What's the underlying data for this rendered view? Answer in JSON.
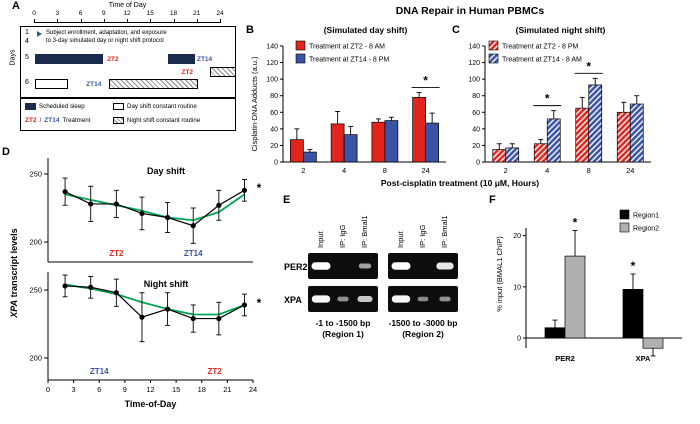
{
  "figure_title": "DNA Repair in Human PBMCs",
  "colors": {
    "red": "#e0251c",
    "blue": "#3a53a4",
    "navy": "#1b2b4d",
    "green": "#00a651",
    "gray": "#b0b0b2",
    "black": "#000000"
  },
  "panelA": {
    "label": "A",
    "axis_title": "Time of Day",
    "ticks": [
      0,
      3,
      6,
      9,
      12,
      15,
      18,
      21,
      24
    ],
    "days_label": "Days",
    "day_first": "1",
    "day_last": "4",
    "enrollment_line1": "Subject enrollment, adaptation, and exposure",
    "enrollment_line2": "to 3-day simulated day or night shift protocol",
    "day5": "5",
    "day6": "6",
    "zt2": "ZT2",
    "zt14": "ZT14",
    "bars": [
      {
        "row": 0,
        "start": 0,
        "end": 8.8,
        "style": "sleep"
      },
      {
        "row": 0,
        "start": 17.2,
        "end": 20.6,
        "style": "sleep"
      },
      {
        "row": 1,
        "start": 22.6,
        "end": 26,
        "style": "night"
      },
      {
        "row": 2,
        "start": 0,
        "end": 4.3,
        "style": "day"
      },
      {
        "row": 2,
        "start": 9.5,
        "end": 21,
        "style": "night"
      }
    ],
    "bar_labels": [
      {
        "row": 0,
        "t": 9.3,
        "text": "ZT2",
        "color": "red"
      },
      {
        "row": 0,
        "t": 20.9,
        "text": "ZT14",
        "color": "blue"
      },
      {
        "row": 1,
        "t": 18.9,
        "text": "ZT2",
        "color": "red"
      },
      {
        "row": 2,
        "t": 6.6,
        "text": "ZT14",
        "color": "blue"
      }
    ],
    "legend": [
      {
        "swatch": "sleep",
        "label": "Scheduled sleep"
      },
      {
        "swatch": "day",
        "label": "Day shift constant routine"
      },
      {
        "swatch": "zt",
        "label": "Treatment"
      },
      {
        "swatch": "night",
        "label": "Night shift constant routine"
      }
    ]
  },
  "panelB_label": "B",
  "panelC_label": "C",
  "panelD_label": "D",
  "panelE_label": "E",
  "panelF_label": "F",
  "panelD": {
    "ylabel_gene": "XPA",
    "ylabel_rest": " transcript levels",
    "xlabel": "Time-of-Day"
  },
  "panelE": {
    "lanes": [
      "Input",
      "IP: IgG",
      "IP: Bmal1"
    ],
    "rows": [
      "PER2",
      "XPA"
    ],
    "groups": [
      {
        "caption1": "-1 to -1500 bp",
        "caption2": "(Region 1)",
        "bands": [
          [
            1,
            0,
            0.4
          ],
          [
            0.95,
            0.3,
            0.65
          ]
        ]
      },
      {
        "caption1": "-1500 to -3000 bp",
        "caption2": "(Region 2)",
        "bands": [
          [
            1,
            0,
            0.85
          ],
          [
            0.95,
            0.25,
            0.3
          ]
        ]
      }
    ]
  },
  "chart_data": [
    {
      "id": "B",
      "type": "bar",
      "title": "(Simulated day shift)",
      "categories": [
        "2",
        "4",
        "8",
        "24"
      ],
      "series": [
        {
          "name": "Treatment at ZT2 - 8 AM",
          "color": "red",
          "hatch": false,
          "values": [
            27,
            46,
            48,
            78
          ],
          "errors": [
            13,
            15,
            4,
            6
          ]
        },
        {
          "name": "Treatment at ZT14 - 8 PM",
          "color": "blue",
          "hatch": false,
          "values": [
            12,
            33,
            50,
            47
          ],
          "errors": [
            3,
            10,
            4,
            12
          ]
        }
      ],
      "ylabel": "Cisplatin-DNA Adducts (a.u.)",
      "xlabel": "Post-cisplatin treatment (10 μM, Hours)",
      "ylim": [
        0,
        140
      ],
      "yticks": [
        0,
        20,
        40,
        60,
        80,
        100,
        120,
        140
      ],
      "sig": [
        {
          "category": "24",
          "label": "*"
        }
      ]
    },
    {
      "id": "C",
      "type": "bar",
      "title": "(Simulated night shift)",
      "categories": [
        "2",
        "4",
        "8",
        "24"
      ],
      "series": [
        {
          "name": "Treatment at ZT2 - 8 PM",
          "color": "red",
          "hatch": true,
          "values": [
            15,
            22,
            65,
            60
          ],
          "errors": [
            7,
            5,
            13,
            12
          ]
        },
        {
          "name": "Treatment at ZT14 - 8 AM",
          "color": "blue",
          "hatch": true,
          "values": [
            17,
            52,
            93,
            70
          ],
          "errors": [
            5,
            10,
            8,
            10
          ]
        }
      ],
      "xlabel": "Post-cisplatin treatment (10 μM, Hours)",
      "ylim": [
        0,
        140
      ],
      "yticks": [
        0,
        20,
        40,
        60,
        80,
        100,
        120,
        140
      ],
      "sig": [
        {
          "category": "4",
          "label": "*"
        },
        {
          "category": "8",
          "label": "*"
        }
      ]
    },
    {
      "id": "D1",
      "type": "line",
      "title": "Day shift",
      "x": [
        2,
        5,
        8,
        11,
        14,
        17,
        20,
        23
      ],
      "values": [
        237,
        228,
        228,
        221,
        218,
        212,
        227,
        238
      ],
      "errors": [
        10,
        13,
        10,
        12,
        11,
        13,
        11,
        8
      ],
      "trend": [
        235,
        231,
        227,
        223,
        218,
        216,
        222,
        235
      ],
      "ylim": [
        185,
        265
      ],
      "yticks": [
        250,
        200
      ],
      "annotations": [
        {
          "text": "ZT2",
          "color": "red",
          "x": 8
        },
        {
          "text": "ZT14",
          "color": "blue",
          "x": 17
        }
      ],
      "star": "*"
    },
    {
      "id": "D2",
      "type": "line",
      "title": "Night shift",
      "x": [
        2,
        5,
        8,
        11,
        14,
        17,
        20,
        23
      ],
      "values": [
        253,
        252,
        248,
        230,
        236,
        229,
        229,
        239
      ],
      "errors": [
        8,
        8,
        10,
        18,
        12,
        10,
        12,
        8
      ],
      "trend": [
        254,
        251,
        247,
        241,
        236,
        232,
        232,
        239
      ],
      "ylim": [
        182,
        268
      ],
      "yticks": [
        250,
        200
      ],
      "xticks": [
        0,
        3,
        6,
        9,
        12,
        15,
        18,
        21,
        24
      ],
      "xlabel": "Time-of-Day",
      "annotations": [
        {
          "text": "ZT14",
          "color": "blue",
          "x": 6
        },
        {
          "text": "ZT2",
          "color": "red",
          "x": 19.5
        }
      ],
      "star": "*"
    },
    {
      "id": "F",
      "type": "bar",
      "categories": [
        "PER2",
        "XPA"
      ],
      "series": [
        {
          "name": "Region1",
          "color": "black",
          "hatch": false,
          "values": [
            2,
            9.5
          ],
          "errors": [
            1.5,
            3
          ]
        },
        {
          "name": "Region2",
          "color": "gray",
          "hatch": false,
          "values": [
            16,
            -2
          ],
          "errors": [
            5,
            1.5
          ]
        }
      ],
      "ylabel": "% input (BMAL1 ChIP)",
      "ylim": [
        0,
        25
      ],
      "yticks": [
        0,
        10,
        20
      ],
      "sig": [
        {
          "category": "PER2",
          "series": "Region2",
          "label": "*"
        },
        {
          "category": "XPA",
          "series": "Region1",
          "label": "*"
        }
      ]
    }
  ]
}
